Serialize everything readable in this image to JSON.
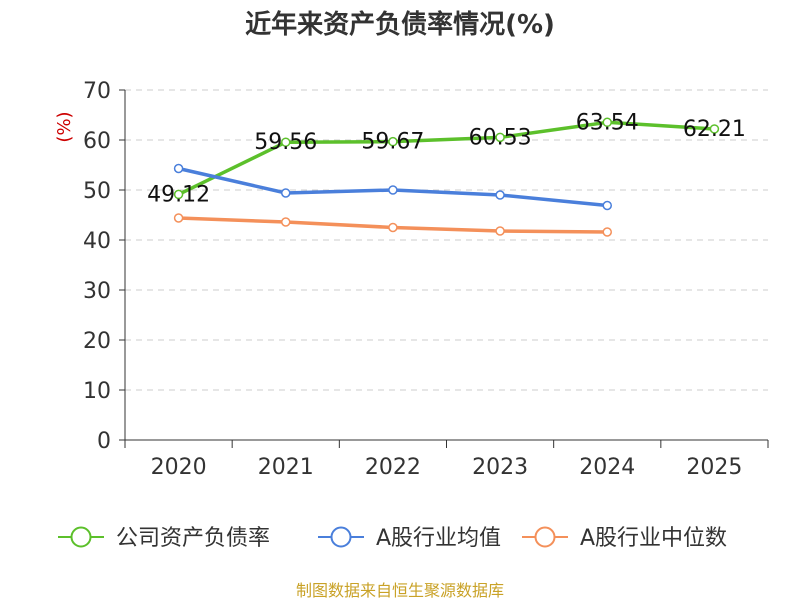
{
  "chart_data": {
    "type": "line",
    "title": "近年来资产负债率情况(%)",
    "ylabel": "(%)",
    "xlabel": "",
    "categories": [
      "2020",
      "2021",
      "2022",
      "2023",
      "2024",
      "2025"
    ],
    "yticks": [
      "0",
      "10",
      "20",
      "30",
      "40",
      "50",
      "60",
      "70"
    ],
    "ylim": [
      0,
      70
    ],
    "grid": true,
    "legend": "bottom",
    "series": [
      {
        "name": "公司资产负债率",
        "color": "#5cc02b",
        "values": [
          49.12,
          59.56,
          59.67,
          60.53,
          63.54,
          62.21
        ],
        "labels": [
          "49.12",
          "59.56",
          "59.67",
          "60.53",
          "63.54",
          "62.21"
        ]
      },
      {
        "name": "A股行业均值",
        "color": "#4a7fdb",
        "values": [
          54.3,
          49.4,
          50.0,
          49.0,
          46.9,
          null
        ],
        "labels": []
      },
      {
        "name": "A股行业中位数",
        "color": "#f4905a",
        "values": [
          44.4,
          43.6,
          42.5,
          41.8,
          41.6,
          null
        ],
        "labels": []
      }
    ]
  },
  "source": "制图数据来自恒生聚源数据库"
}
